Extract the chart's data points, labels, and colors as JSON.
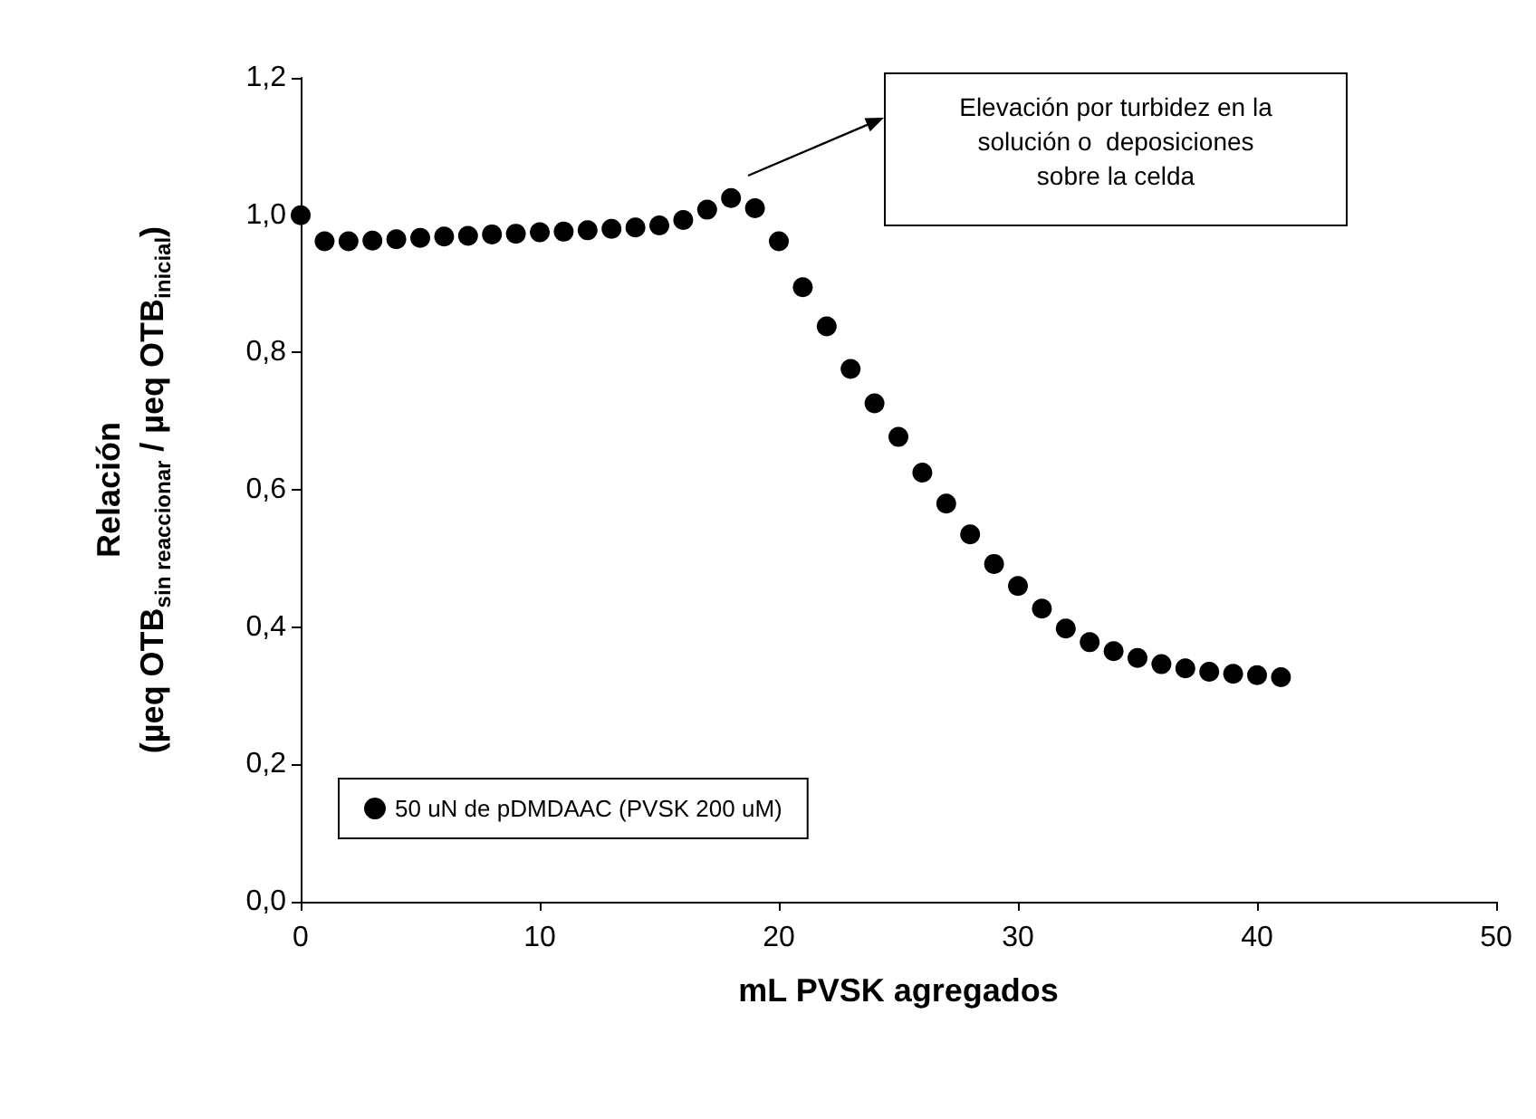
{
  "chart_data": {
    "type": "scatter",
    "xlabel": "mL PVSK agregados",
    "ylabel": "Relación\n(µeq OTB$_{sin reaccionar}$ / µeq OTB$_{inicial}$)",
    "x": [
      0,
      1,
      2,
      3,
      4,
      5,
      6,
      7,
      8,
      9,
      10,
      11,
      12,
      13,
      14,
      15,
      16,
      17,
      18,
      19,
      20,
      21,
      22,
      23,
      24,
      25,
      26,
      27,
      28,
      29,
      30,
      31,
      32,
      33,
      34,
      35,
      36,
      37,
      38,
      39,
      40,
      41
    ],
    "series": [
      {
        "name": "50 uN de pDMDAAC (PVSK 200 uM)",
        "color": "#000000",
        "values": [
          1.0,
          0.962,
          0.962,
          0.963,
          0.965,
          0.967,
          0.969,
          0.97,
          0.972,
          0.973,
          0.975,
          0.976,
          0.978,
          0.98,
          0.982,
          0.985,
          0.993,
          1.008,
          1.025,
          1.01,
          0.962,
          0.895,
          0.838,
          0.776,
          0.726,
          0.677,
          0.625,
          0.58,
          0.535,
          0.492,
          0.46,
          0.427,
          0.398,
          0.378,
          0.365,
          0.355,
          0.346,
          0.34,
          0.335,
          0.332,
          0.33,
          0.327
        ]
      }
    ],
    "xlim": [
      0,
      50
    ],
    "xticks": [
      0,
      10,
      20,
      30,
      40,
      50
    ],
    "ylim": [
      0,
      1.2
    ],
    "yticks": [
      {
        "value": 0,
        "label": "0,0"
      },
      {
        "value": 0.2,
        "label": "0,2"
      },
      {
        "value": 0.4,
        "label": "0,4"
      },
      {
        "value": 0.6,
        "label": "0,6"
      },
      {
        "value": 0.8,
        "label": "0,8"
      },
      {
        "value": 1.0,
        "label": "1,0"
      },
      {
        "value": 1.2,
        "label": "1,2"
      }
    ],
    "annotations": [
      "Elevación por turbidez en la\nsolución o  deposiciones\nsobre la celda"
    ],
    "marker": "circle",
    "legend": "bottom left",
    "grid": false
  }
}
